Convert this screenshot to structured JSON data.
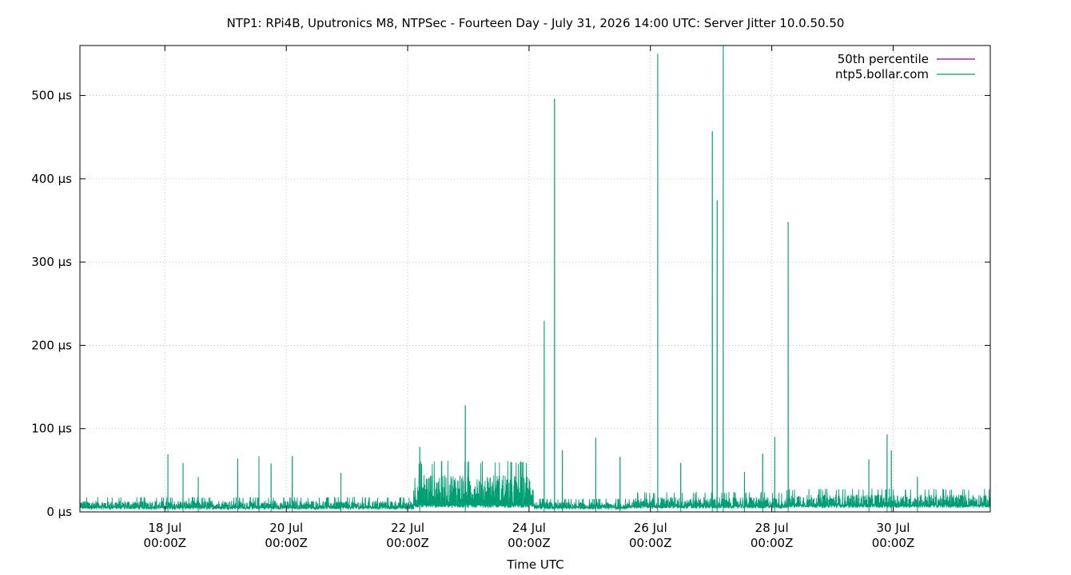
{
  "chart_data": {
    "type": "line",
    "title": "NTP1: RPi4B, Uputronics M8, NTPSec - Fourteen Day - July 31, 2026 14:00 UTC: Server Jitter 10.0.50.50",
    "xlabel": "Time UTC",
    "ylabel": "",
    "x_range_days": [
      16.6,
      31.6
    ],
    "ylim": [
      0,
      560
    ],
    "x_ticks": [
      {
        "day": 18,
        "line1": "18 Jul",
        "line2": "00:00Z"
      },
      {
        "day": 20,
        "line1": "20 Jul",
        "line2": "00:00Z"
      },
      {
        "day": 22,
        "line1": "22 Jul",
        "line2": "00:00Z"
      },
      {
        "day": 24,
        "line1": "24 Jul",
        "line2": "00:00Z"
      },
      {
        "day": 26,
        "line1": "26 Jul",
        "line2": "00:00Z"
      },
      {
        "day": 28,
        "line1": "28 Jul",
        "line2": "00:00Z"
      },
      {
        "day": 30,
        "line1": "30 Jul",
        "line2": "00:00Z"
      }
    ],
    "y_ticks": [
      {
        "value": 0,
        "label": "0 µs"
      },
      {
        "value": 100,
        "label": "100 µs"
      },
      {
        "value": 200,
        "label": "200 µs"
      },
      {
        "value": 300,
        "label": "300 µs"
      },
      {
        "value": 400,
        "label": "400 µs"
      },
      {
        "value": 500,
        "label": "500 µs"
      }
    ],
    "grid": true,
    "legend_position": "top-right",
    "series": [
      {
        "name": "50th percentile",
        "color": "#94008a",
        "values": []
      },
      {
        "name": "ntp5.bollar.com",
        "color": "#009e73",
        "baseline_segments": [
          {
            "from": 16.6,
            "to": 22.1,
            "low": 3,
            "high": 18
          },
          {
            "from": 22.1,
            "to": 24.08,
            "low": 5,
            "high": 62
          },
          {
            "from": 24.08,
            "to": 25.7,
            "low": 3,
            "high": 16
          },
          {
            "from": 25.7,
            "to": 28.25,
            "low": 4,
            "high": 24
          },
          {
            "from": 28.25,
            "to": 31.6,
            "low": 5,
            "high": 28
          }
        ],
        "spikes": [
          {
            "day": 18.05,
            "value": 69
          },
          {
            "day": 18.3,
            "value": 59
          },
          {
            "day": 18.55,
            "value": 42
          },
          {
            "day": 19.2,
            "value": 64
          },
          {
            "day": 19.55,
            "value": 67
          },
          {
            "day": 19.75,
            "value": 58
          },
          {
            "day": 20.1,
            "value": 67
          },
          {
            "day": 20.9,
            "value": 47
          },
          {
            "day": 22.2,
            "value": 78
          },
          {
            "day": 22.95,
            "value": 128
          },
          {
            "day": 24.25,
            "value": 229
          },
          {
            "day": 24.42,
            "value": 496
          },
          {
            "day": 24.55,
            "value": 74
          },
          {
            "day": 25.1,
            "value": 89
          },
          {
            "day": 25.5,
            "value": 66
          },
          {
            "day": 26.12,
            "value": 550
          },
          {
            "day": 26.5,
            "value": 59
          },
          {
            "day": 27.02,
            "value": 457
          },
          {
            "day": 27.1,
            "value": 374
          },
          {
            "day": 27.2,
            "value": 560
          },
          {
            "day": 27.55,
            "value": 48
          },
          {
            "day": 27.85,
            "value": 70
          },
          {
            "day": 28.05,
            "value": 90
          },
          {
            "day": 28.27,
            "value": 348
          },
          {
            "day": 29.6,
            "value": 63
          },
          {
            "day": 29.9,
            "value": 93
          },
          {
            "day": 29.97,
            "value": 74
          },
          {
            "day": 30.4,
            "value": 42
          }
        ]
      }
    ]
  }
}
